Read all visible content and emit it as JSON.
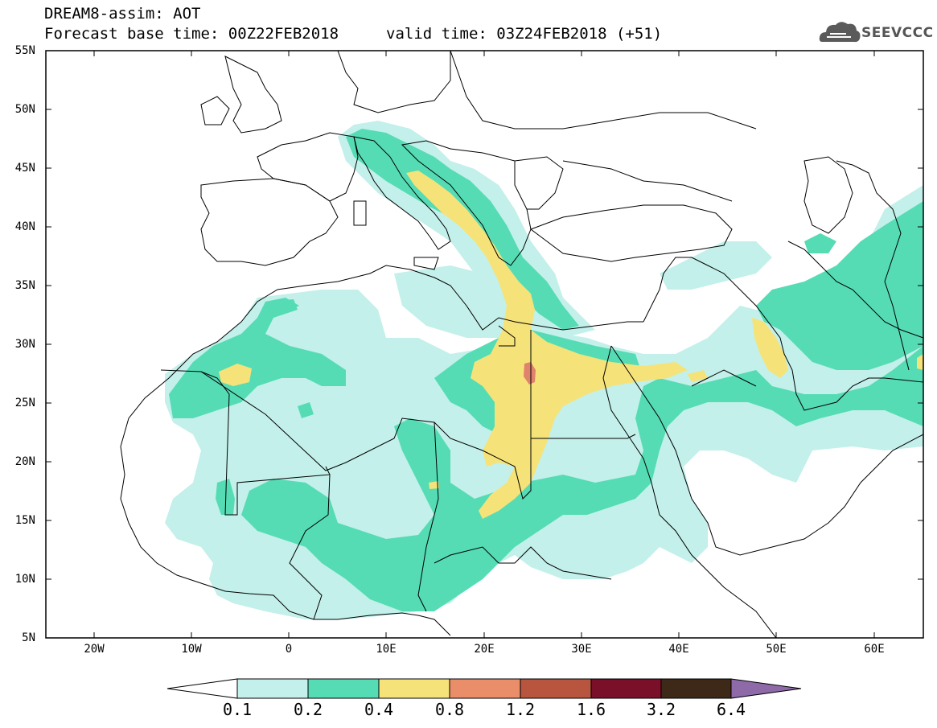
{
  "title": {
    "line1": "DREAM8-assim: AOT",
    "line2": "Forecast base time: 00Z22FEB2018",
    "valid": "valid time: 03Z24FEB2018 (+51)"
  },
  "logo": {
    "text": "SEEVCCC",
    "icon": "cloud-icon"
  },
  "map": {
    "lon_range": [
      -25,
      65
    ],
    "lat_range": [
      5,
      55
    ],
    "lat_labels": [
      "55N",
      "50N",
      "45N",
      "40N",
      "35N",
      "30N",
      "25N",
      "20N",
      "15N",
      "10N",
      "5N"
    ],
    "lon_labels": [
      "20W",
      "10W",
      "0",
      "10E",
      "20E",
      "30E",
      "40E",
      "50E",
      "60E"
    ],
    "field": "Aerosol Optical Thickness (AOT)"
  },
  "colorbar": {
    "labels": [
      "0.1",
      "0.2",
      "0.4",
      "0.8",
      "1.2",
      "1.6",
      "3.2",
      "6.4"
    ],
    "colors": [
      "#c3f0ea",
      "#55dcb4",
      "#f5e37a",
      "#e98e68",
      "#b8553f",
      "#7a0f2a",
      "#3e2918",
      "#8f6aa8"
    ],
    "under_color": "#ffffff"
  },
  "colors": {
    "lvl1": "#c3f0ea",
    "lvl2": "#55dcb4",
    "lvl3": "#f5e37a",
    "lvl4": "#e1826c"
  }
}
